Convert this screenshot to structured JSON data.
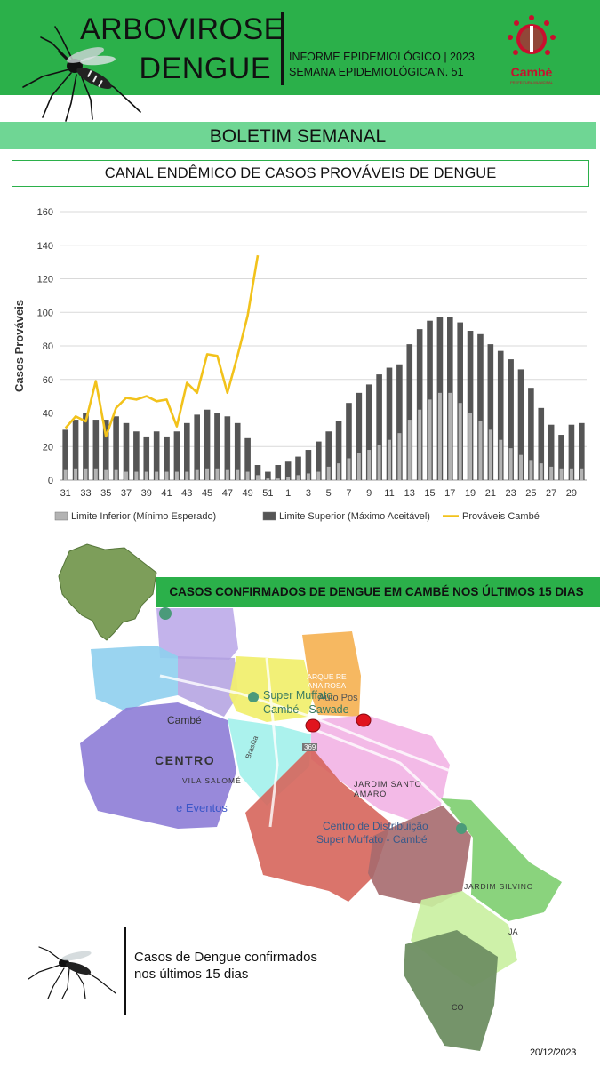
{
  "header": {
    "title_line1": "ARBOVIROSE",
    "title_line2": "DENGUE",
    "report_line1": "INFORME EPIDEMIOLÓGICO | 2023",
    "report_line2": "SEMANA EPIDEMIOLÓGICA  N. 51",
    "logo_text": "Cambé",
    "logo_subtext": "PREFEITURA MUNICIPAL",
    "colors": {
      "header_green": "#2bb04a",
      "bulletin_green": "#6fd694",
      "logo_red": "#c8102e"
    }
  },
  "bulletin": {
    "title": "BOLETIM SEMANAL"
  },
  "chart_title": "CANAL ENDÊMICO DE CASOS PROVÁVEIS DE DENGUE",
  "chart_data": {
    "type": "bar",
    "title": "",
    "ylabel": "Casos Prováveis",
    "xlabel": "",
    "ylim": [
      0,
      160
    ],
    "yticks": [
      0,
      20,
      40,
      60,
      80,
      100,
      120,
      140,
      160
    ],
    "grid": true,
    "legend_position": "bottom",
    "weeks": [
      "31",
      "32",
      "33",
      "34",
      "35",
      "36",
      "37",
      "38",
      "39",
      "40",
      "41",
      "42",
      "43",
      "44",
      "45",
      "46",
      "47",
      "48",
      "49",
      "50",
      "51",
      "52",
      "1",
      "2",
      "3",
      "4",
      "5",
      "6",
      "7",
      "8",
      "9",
      "10",
      "11",
      "12",
      "13",
      "14",
      "15",
      "16",
      "17",
      "18",
      "19",
      "20",
      "21",
      "22",
      "23",
      "24",
      "25",
      "26",
      "27",
      "28",
      "29",
      "30"
    ],
    "tick_labels": [
      "31",
      "33",
      "35",
      "37",
      "39",
      "41",
      "43",
      "45",
      "47",
      "49",
      "51",
      "1",
      "3",
      "5",
      "7",
      "9",
      "11",
      "13",
      "15",
      "17",
      "19",
      "21",
      "23",
      "25",
      "27",
      "29"
    ],
    "series": [
      {
        "name": "Limite Inferior (Mínimo Esperado)",
        "type": "bar",
        "color": "#b3b3b3",
        "values": [
          6,
          7,
          7,
          7,
          6,
          6,
          5,
          5,
          5,
          5,
          5,
          5,
          5,
          6,
          7,
          7,
          6,
          6,
          5,
          3,
          1,
          1,
          2,
          3,
          4,
          5,
          8,
          10,
          13,
          16,
          18,
          21,
          24,
          28,
          36,
          42,
          48,
          52,
          52,
          46,
          40,
          35,
          30,
          24,
          19,
          15,
          12,
          10,
          8,
          7,
          7,
          7
        ]
      },
      {
        "name": "Limite Superior (Máximo Aceitável)",
        "type": "bar",
        "color": "#555555",
        "values": [
          30,
          36,
          40,
          36,
          36,
          38,
          34,
          29,
          26,
          29,
          26,
          29,
          34,
          39,
          42,
          40,
          38,
          34,
          25,
          9,
          5,
          9,
          11,
          14,
          18,
          23,
          29,
          35,
          46,
          52,
          57,
          63,
          67,
          69,
          81,
          90,
          95,
          97,
          97,
          94,
          89,
          87,
          81,
          77,
          72,
          66,
          55,
          43,
          33,
          27,
          33,
          34
        ]
      },
      {
        "name": "Prováveis Cambé",
        "type": "line",
        "color": "#f2c21b",
        "values": [
          31,
          38,
          35,
          59,
          26,
          43,
          49,
          48,
          50,
          47,
          48,
          32,
          58,
          52,
          75,
          74,
          52,
          74,
          98,
          134
        ]
      }
    ]
  },
  "map": {
    "banner": "CASOS CONFIRMADOS DE DENGUE EM CAMBÉ NOS ÚLTIMOS 15 DIAS",
    "labels": {
      "arque": "ARQUE RE",
      "ana_rosa": "ANA ROSA",
      "auto_pos": "Auto Pos",
      "super_muffato1": "Super Muffato",
      "super_muffato2": "Cambé - Sawade",
      "cambe": "Cambé",
      "centro": "CENTRO",
      "vila_salome": "VILA SALOMÉ",
      "eventos": "e Eventos",
      "brasilia": "Brasília",
      "road": "369",
      "jardim_santo1": "JARDIM SANTO",
      "jardim_santo2": "AMARO",
      "cd1": "Centro de Distribuição",
      "cd2": "Super Muffato - Cambé",
      "jardim_silvino": "JARDIM SILVINO",
      "ja": "JA",
      "co": "CO"
    },
    "case_marker_color": "#e0141e",
    "case_count": 2
  },
  "legend_note": "Casos de Dengue confirmados nos últimos 15 dias",
  "date": "20/12/2023"
}
